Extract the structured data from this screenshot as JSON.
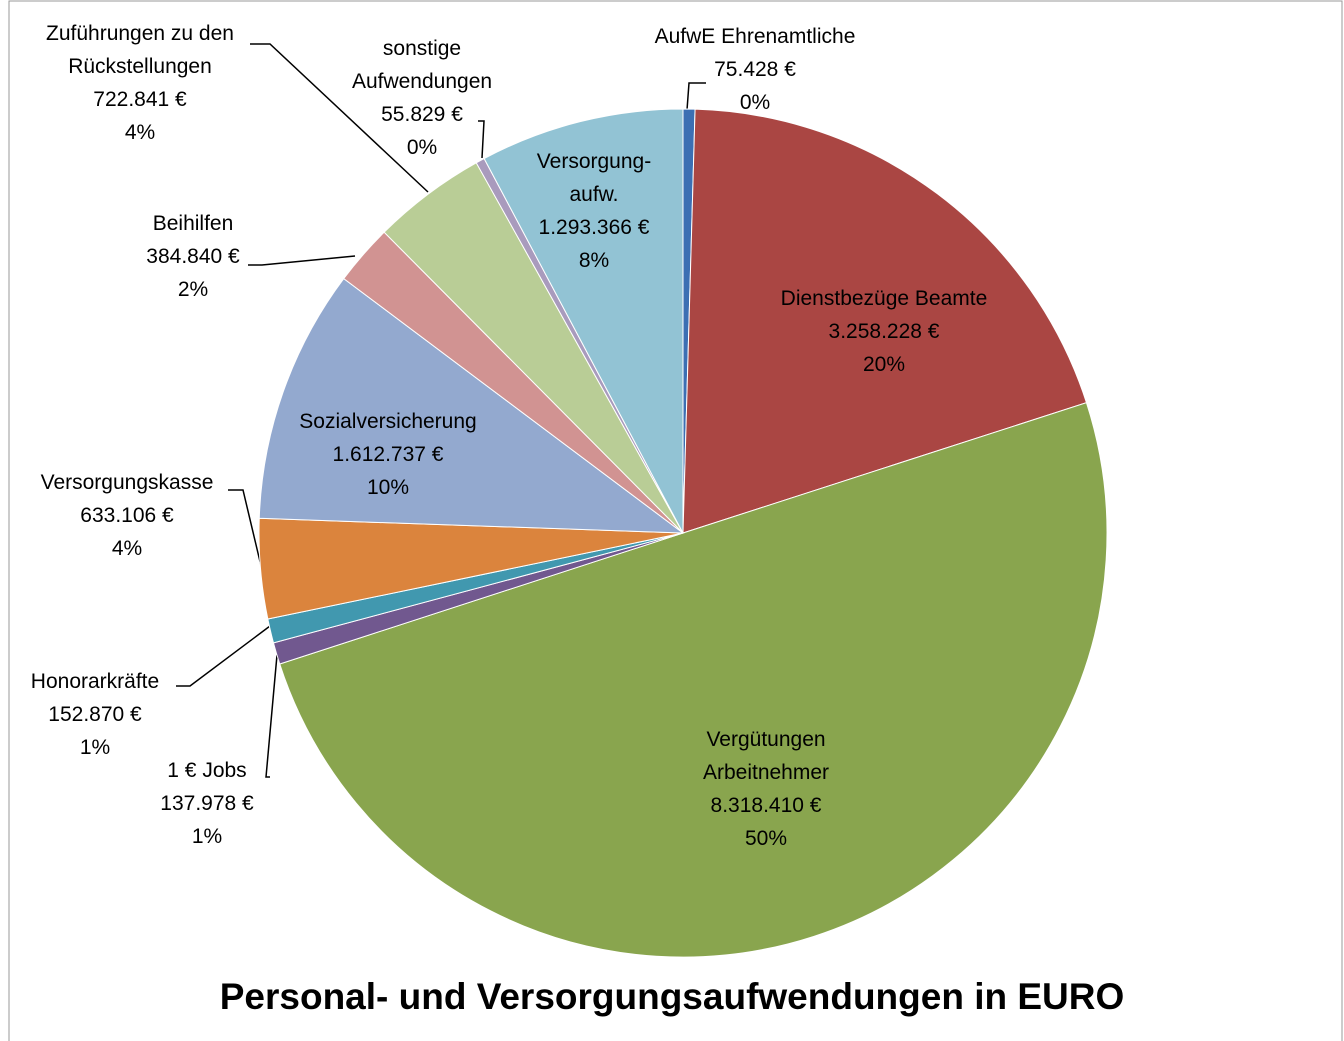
{
  "chart_data": {
    "type": "pie",
    "title": "Personal- und Versorgungsaufwendungen in EURO",
    "categories": [
      "AufwE Ehrenamtliche",
      "Dienstbezüge Beamte",
      "Vergütungen Arbeitnehmer",
      "1 € Jobs",
      "Honorarkräfte",
      "Versorgungskasse",
      "Sozialversicherung",
      "Beihilfen",
      "Zuführungen zu den Rückstellungen",
      "sonstige Aufwendungen",
      "Versorgung-aufw."
    ],
    "values": [
      75428,
      3258228,
      8318410,
      137978,
      152870,
      633106,
      1612737,
      384840,
      722841,
      55829,
      1293366
    ],
    "value_labels": [
      "75.428 €",
      "3.258.228 €",
      "8.318.410 €",
      "137.978 €",
      "152.870 €",
      "633.106 €",
      "1.612.737 €",
      "384.840 €",
      "722.841 €",
      "55.829 €",
      "1.293.366 €"
    ],
    "percentages": [
      0,
      20,
      50,
      1,
      1,
      4,
      10,
      2,
      4,
      0,
      8
    ],
    "percentage_labels": [
      "0%",
      "20%",
      "50%",
      "1%",
      "1%",
      "4%",
      "10%",
      "2%",
      "4%",
      "0%",
      "8%"
    ],
    "colors": [
      "#3c6fb3",
      "#aa4643",
      "#89a54e",
      "#71588f",
      "#4198af",
      "#db843d",
      "#93a9cf",
      "#d19392",
      "#b9cd96",
      "#a99bbd",
      "#92c3d4"
    ]
  }
}
